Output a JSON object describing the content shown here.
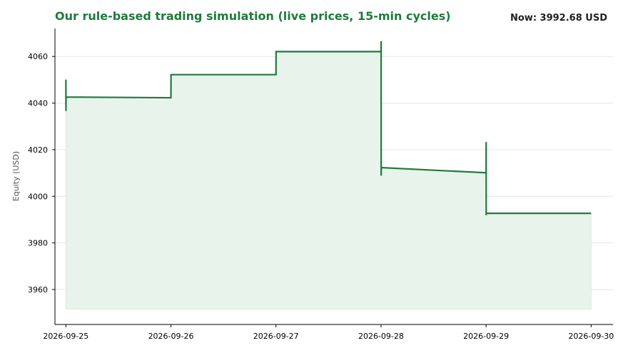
{
  "header": {
    "title": "Our rule-based trading simulation (live prices, 15-min cycles)",
    "now_label": "Now: 3992.68 USD"
  },
  "colors": {
    "line": "#1e7b3c",
    "fill": "#e8f3ec",
    "grid": "#e6e6e6",
    "axis": "#000000"
  },
  "chart_data": {
    "type": "line",
    "title": "Our rule-based trading simulation (live prices, 15-min cycles)",
    "ylabel": "Equity (USD)",
    "xlabel": "",
    "ylim": [
      3945,
      4072
    ],
    "xlim": [
      "2026-09-24T21:30",
      "2026-09-30T05:00"
    ],
    "yticks": [
      3960,
      3980,
      4000,
      4020,
      4040,
      4060
    ],
    "xticks": [
      "2026-09-25",
      "2026-09-26",
      "2026-09-27",
      "2026-09-28",
      "2026-09-29",
      "2026-09-30"
    ],
    "grid": true,
    "fill_baseline": 3951.5,
    "series": [
      {
        "points": [
          [
            "2026-09-25T00:00",
            4050.1
          ],
          [
            "2026-09-25T00:01",
            4036.6
          ],
          [
            "2026-09-25T00:02",
            4042.6
          ],
          [
            "2026-09-26T00:00",
            4042.3
          ],
          [
            "2026-09-26T00:01",
            4052.2
          ],
          [
            "2026-09-27T00:00",
            4052.2
          ],
          [
            "2026-09-27T00:01",
            4062.1
          ],
          [
            "2026-09-28T00:00",
            4062.1
          ],
          [
            "2026-09-28T00:01",
            4066.6
          ],
          [
            "2026-09-28T00:02",
            4008.9
          ],
          [
            "2026-09-28T00:03",
            4012.3
          ],
          [
            "2026-09-29T00:00",
            4010.1
          ],
          [
            "2026-09-29T00:01",
            4023.3
          ],
          [
            "2026-09-29T00:02",
            3991.9
          ],
          [
            "2026-09-29T00:03",
            3992.7
          ],
          [
            "2026-09-30T00:00",
            3992.7
          ]
        ]
      }
    ]
  }
}
